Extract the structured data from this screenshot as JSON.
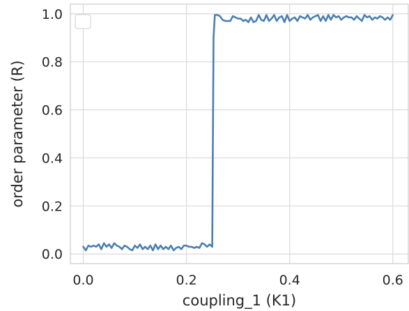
{
  "chart_data": {
    "type": "line",
    "title": "",
    "xlabel": "coupling_1 (K1)",
    "ylabel": "order parameter (R)",
    "xlim": [
      -0.025,
      0.63
    ],
    "ylim": [
      -0.04,
      1.04
    ],
    "xticks": [
      0.0,
      0.2,
      0.4,
      0.6
    ],
    "xtick_labels": [
      "0.0",
      "0.2",
      "0.4",
      "0.6"
    ],
    "yticks": [
      0.0,
      0.2,
      0.4,
      0.6,
      0.8,
      1.0
    ],
    "ytick_labels": [
      "0.0",
      "0.2",
      "0.4",
      "0.6",
      "0.8",
      "1.0"
    ],
    "grid": true,
    "legend": {
      "position": "top-left",
      "entries": []
    },
    "colors": {
      "series": "#4c7fb0",
      "grid": "#d9d9d9",
      "frame": "#cccccc",
      "text": "#262626"
    },
    "series": [
      {
        "x": [
          0.0,
          0.005,
          0.01,
          0.015,
          0.02,
          0.025,
          0.03,
          0.035,
          0.04,
          0.045,
          0.05,
          0.055,
          0.06,
          0.065,
          0.07,
          0.075,
          0.08,
          0.085,
          0.09,
          0.095,
          0.1,
          0.105,
          0.11,
          0.115,
          0.12,
          0.125,
          0.13,
          0.135,
          0.14,
          0.145,
          0.15,
          0.155,
          0.16,
          0.165,
          0.17,
          0.175,
          0.18,
          0.185,
          0.19,
          0.195,
          0.2,
          0.205,
          0.21,
          0.215,
          0.22,
          0.225,
          0.23,
          0.235,
          0.24,
          0.245,
          0.25,
          0.2525,
          0.255,
          0.26,
          0.265,
          0.27,
          0.275,
          0.28,
          0.285,
          0.29,
          0.295,
          0.3,
          0.305,
          0.31,
          0.315,
          0.32,
          0.325,
          0.33,
          0.335,
          0.34,
          0.345,
          0.35,
          0.355,
          0.36,
          0.365,
          0.37,
          0.375,
          0.38,
          0.385,
          0.39,
          0.395,
          0.4,
          0.405,
          0.41,
          0.415,
          0.42,
          0.425,
          0.43,
          0.435,
          0.44,
          0.445,
          0.45,
          0.455,
          0.46,
          0.465,
          0.47,
          0.475,
          0.48,
          0.485,
          0.49,
          0.495,
          0.5,
          0.505,
          0.51,
          0.515,
          0.52,
          0.525,
          0.53,
          0.535,
          0.54,
          0.545,
          0.55,
          0.555,
          0.56,
          0.565,
          0.57,
          0.575,
          0.58,
          0.585,
          0.59,
          0.595,
          0.6
        ],
        "y": [
          0.03,
          0.015,
          0.035,
          0.03,
          0.035,
          0.03,
          0.04,
          0.02,
          0.045,
          0.03,
          0.04,
          0.025,
          0.045,
          0.035,
          0.03,
          0.02,
          0.035,
          0.03,
          0.02,
          0.015,
          0.035,
          0.025,
          0.04,
          0.02,
          0.03,
          0.02,
          0.035,
          0.015,
          0.04,
          0.02,
          0.035,
          0.02,
          0.03,
          0.02,
          0.035,
          0.015,
          0.025,
          0.03,
          0.02,
          0.035,
          0.035,
          0.03,
          0.03,
          0.025,
          0.03,
          0.025,
          0.045,
          0.04,
          0.03,
          0.04,
          0.03,
          0.9,
          0.995,
          0.995,
          0.99,
          0.975,
          0.97,
          0.97,
          0.97,
          0.99,
          0.985,
          0.98,
          0.98,
          0.97,
          0.975,
          0.965,
          0.985,
          0.965,
          0.97,
          0.995,
          0.975,
          0.97,
          0.995,
          0.97,
          0.98,
          0.995,
          0.97,
          0.985,
          0.99,
          0.965,
          0.995,
          0.97,
          0.98,
          0.985,
          0.97,
          0.99,
          0.985,
          0.98,
          0.995,
          0.975,
          0.985,
          0.99,
          0.995,
          0.97,
          0.99,
          0.97,
          0.995,
          0.975,
          0.995,
          0.985,
          0.99,
          0.975,
          0.985,
          0.99,
          0.985,
          0.985,
          0.975,
          0.99,
          0.98,
          0.97,
          0.995,
          0.985,
          0.99,
          0.975,
          0.985,
          0.98,
          0.99,
          0.985,
          0.975,
          0.985,
          0.975,
          0.995
        ]
      }
    ]
  }
}
